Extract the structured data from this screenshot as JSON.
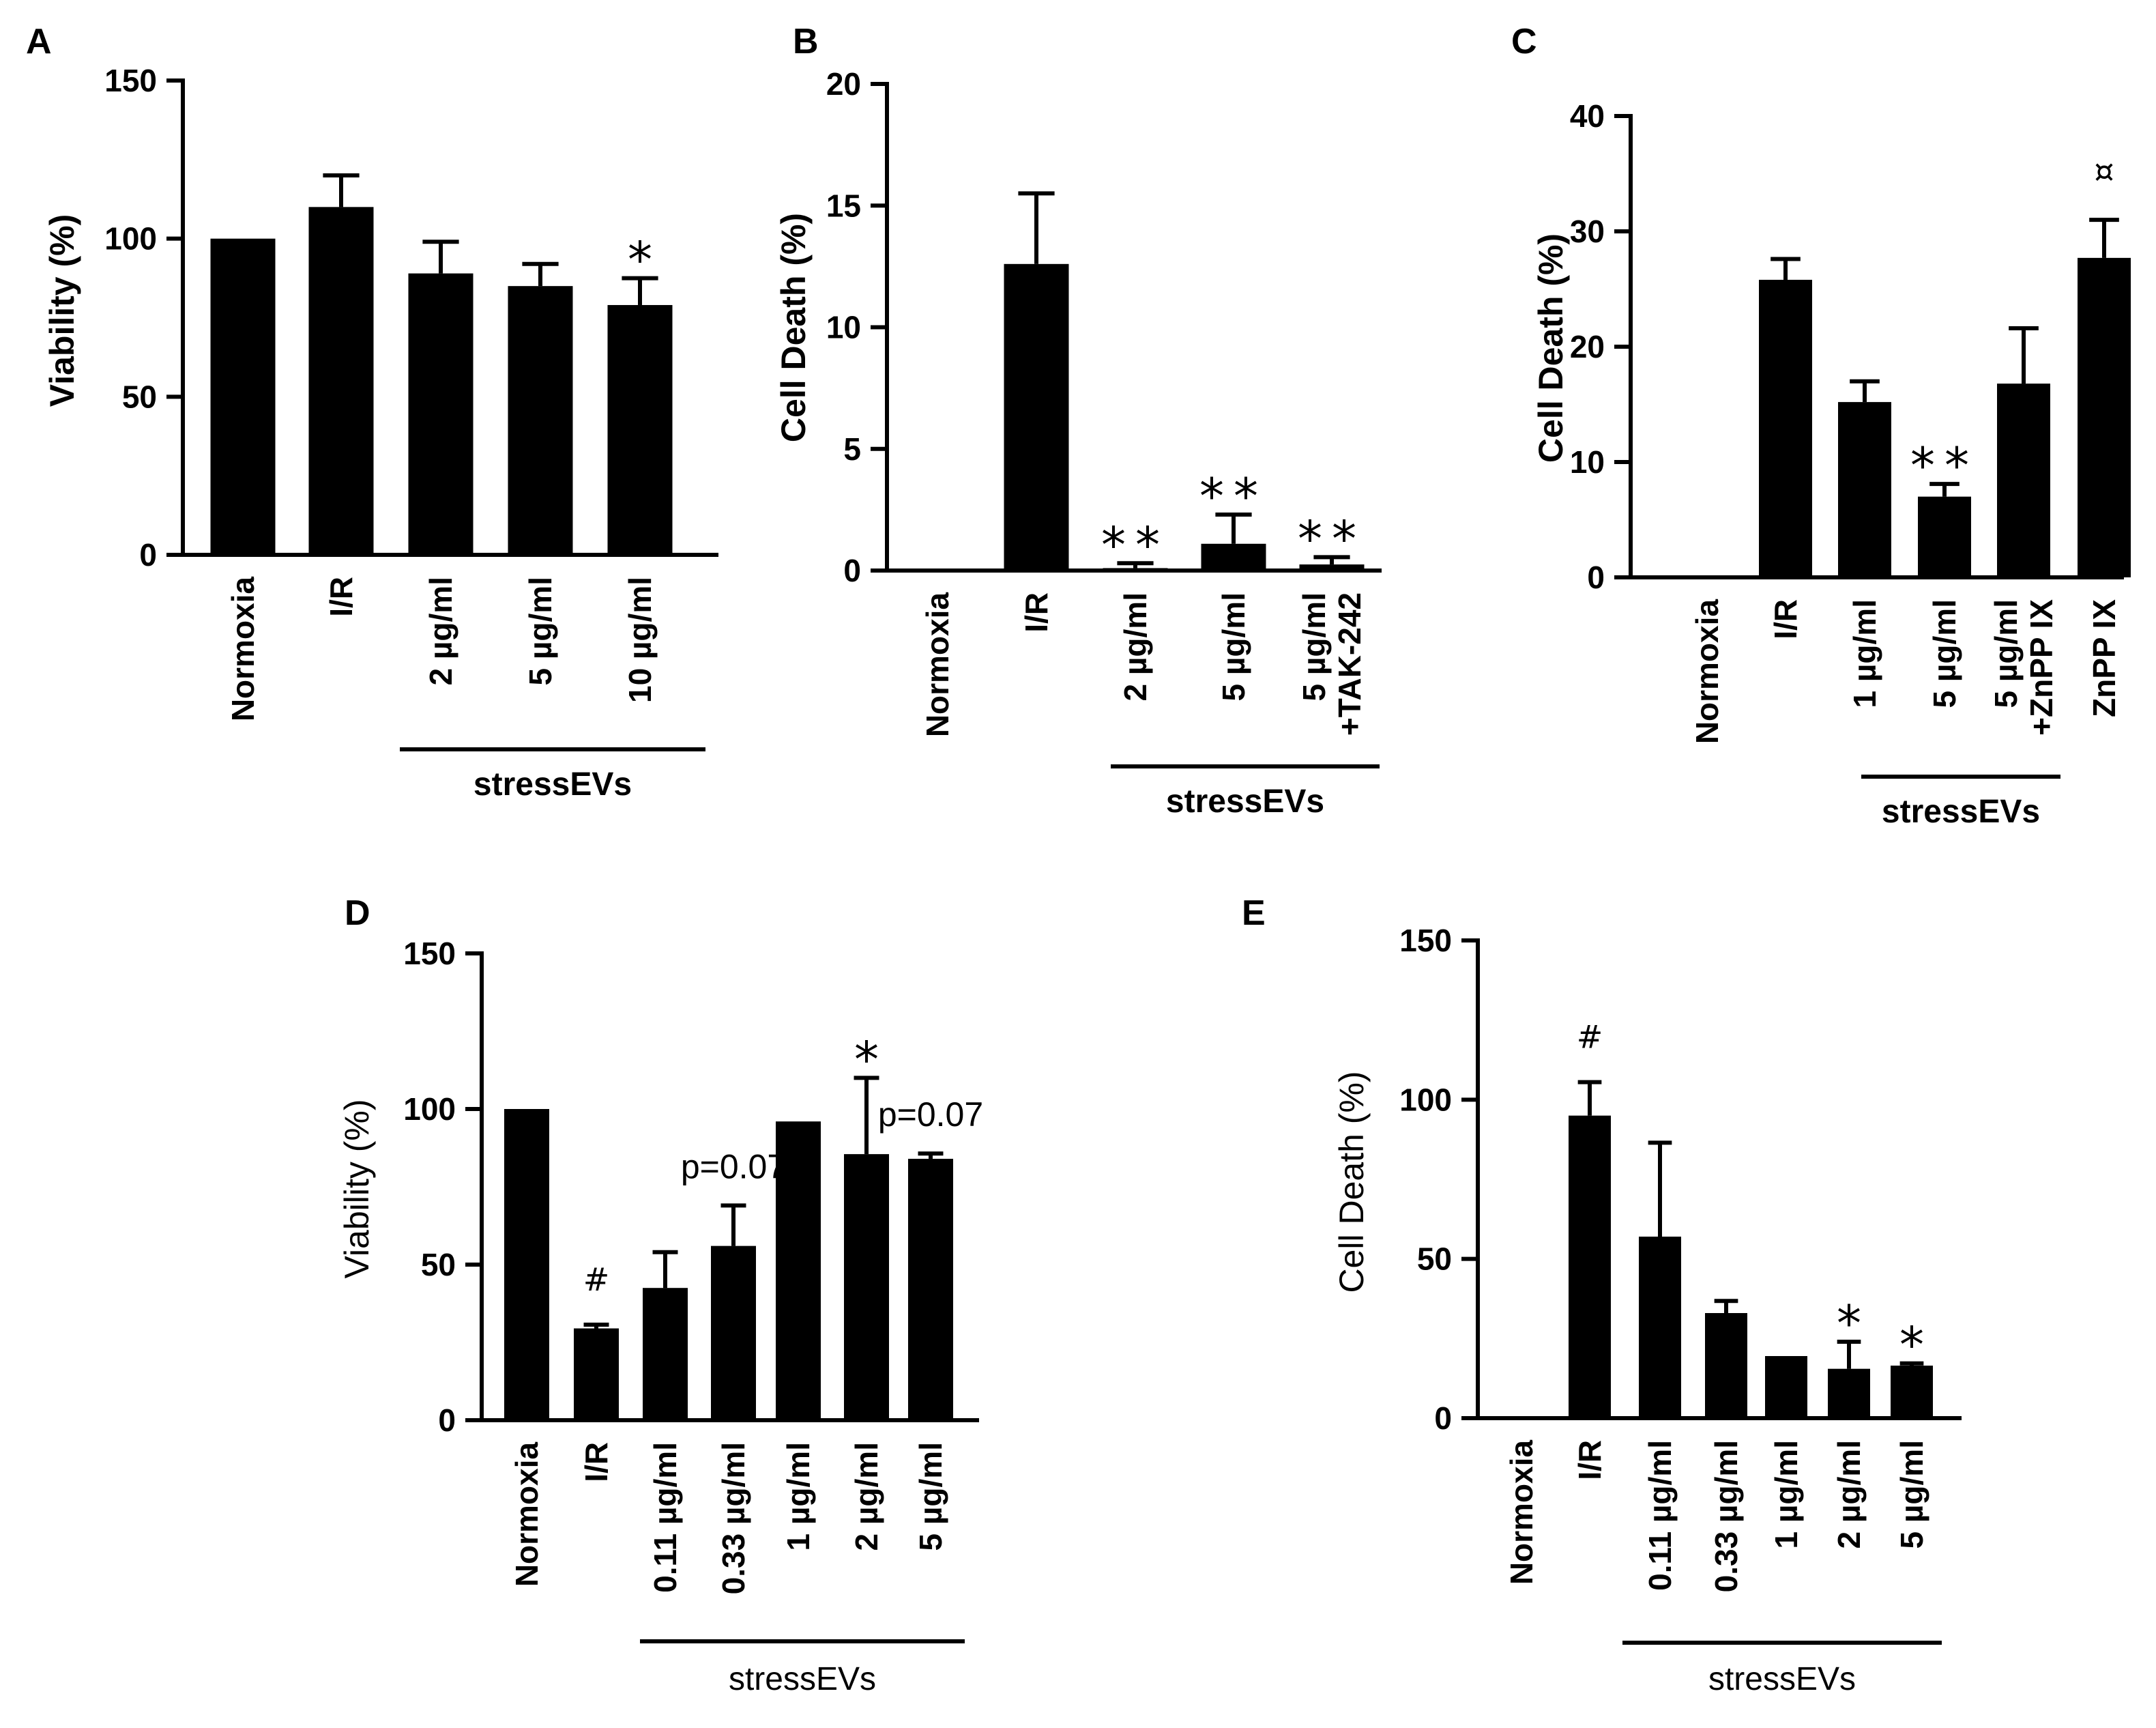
{
  "chart_data": [
    {
      "panel": "A",
      "type": "bar",
      "ylabel": "Viability (%)",
      "ylim": [
        0,
        150
      ],
      "yticks": [
        0,
        50,
        100,
        150
      ],
      "categories": [
        "Normoxia",
        "I/R",
        "2 µg/ml",
        "5 µg/ml",
        "10 µg/ml"
      ],
      "values": [
        100,
        110,
        89,
        85,
        79
      ],
      "errors": [
        0,
        10,
        10,
        7,
        8.5
      ],
      "annotations": [
        "",
        "",
        "",
        "",
        "*"
      ],
      "group": {
        "label": "stressEVs",
        "from": 2,
        "to": 4
      }
    },
    {
      "panel": "B",
      "type": "bar",
      "ylabel": "Cell Death (%)",
      "ylim": [
        0,
        20
      ],
      "yticks": [
        0,
        5,
        10,
        15,
        20
      ],
      "categories": [
        "Normoxia",
        "I/R",
        "2 µg/ml",
        "5 µg/ml",
        [
          "5 µg/ml",
          "+TAK-242"
        ]
      ],
      "values": [
        0,
        12.6,
        0.1,
        1.1,
        0.25
      ],
      "errors": [
        0,
        2.9,
        0.2,
        1.2,
        0.3
      ],
      "annotations": [
        "",
        "",
        "**",
        "**",
        "**"
      ],
      "group": {
        "label": "stressEVs",
        "from": 2,
        "to": 4
      }
    },
    {
      "panel": "C",
      "type": "bar",
      "ylabel": "Cell Death (%)",
      "ylim": [
        0,
        40
      ],
      "yticks": [
        0,
        10,
        20,
        30,
        40
      ],
      "categories": [
        "Normoxia",
        "I/R",
        "1 µg/ml",
        "5 µg/ml",
        [
          "5 µg/ml",
          "+ZnPP IX"
        ],
        "ZnPP IX"
      ],
      "values": [
        0,
        25.8,
        15.2,
        7,
        16.8,
        27.7
      ],
      "errors": [
        0,
        1.8,
        1.8,
        1.1,
        4.8,
        3.3
      ],
      "annotations": [
        "",
        "",
        "",
        "**",
        "",
        "¤"
      ],
      "group": {
        "label": "stressEVs",
        "from": 2,
        "to": 4
      }
    },
    {
      "panel": "D",
      "type": "bar",
      "ylabel": "Viability (%)",
      "ylim": [
        0,
        150
      ],
      "yticks": [
        0,
        50,
        100,
        150
      ],
      "categories": [
        "Normoxia",
        "I/R",
        "0.11 µg/ml",
        "0.33 µg/ml",
        "1 µg/ml",
        "2 µg/ml",
        "5 µg/ml"
      ],
      "values": [
        100,
        29.5,
        42.5,
        56,
        96,
        85.5,
        84
      ],
      "errors": [
        0,
        1.2,
        11.5,
        13,
        0,
        24.5,
        1.7
      ],
      "annotations": [
        "",
        "#",
        "",
        "p=0.07",
        "",
        "*",
        "p=0.07"
      ],
      "group": {
        "label": "stressEVs",
        "from": 2,
        "to": 6
      }
    },
    {
      "panel": "E",
      "type": "bar",
      "ylabel": "Cell Death (%)",
      "ylim": [
        0,
        150
      ],
      "yticks": [
        0,
        50,
        100,
        150
      ],
      "categories": [
        "Normoxia",
        "I/R",
        "0.11 µg/ml",
        "0.33 µg/ml",
        "1 µg/ml",
        "2 µg/ml",
        "5 µg/ml"
      ],
      "values": [
        0,
        95,
        57,
        33,
        19.5,
        15.5,
        16.5
      ],
      "errors": [
        0,
        10.5,
        29.5,
        3.8,
        0,
        8.5,
        0.7
      ],
      "annotations": [
        "",
        "#",
        "",
        "",
        "",
        "*",
        "*"
      ],
      "group": {
        "label": "stressEVs",
        "from": 2,
        "to": 6
      }
    }
  ]
}
